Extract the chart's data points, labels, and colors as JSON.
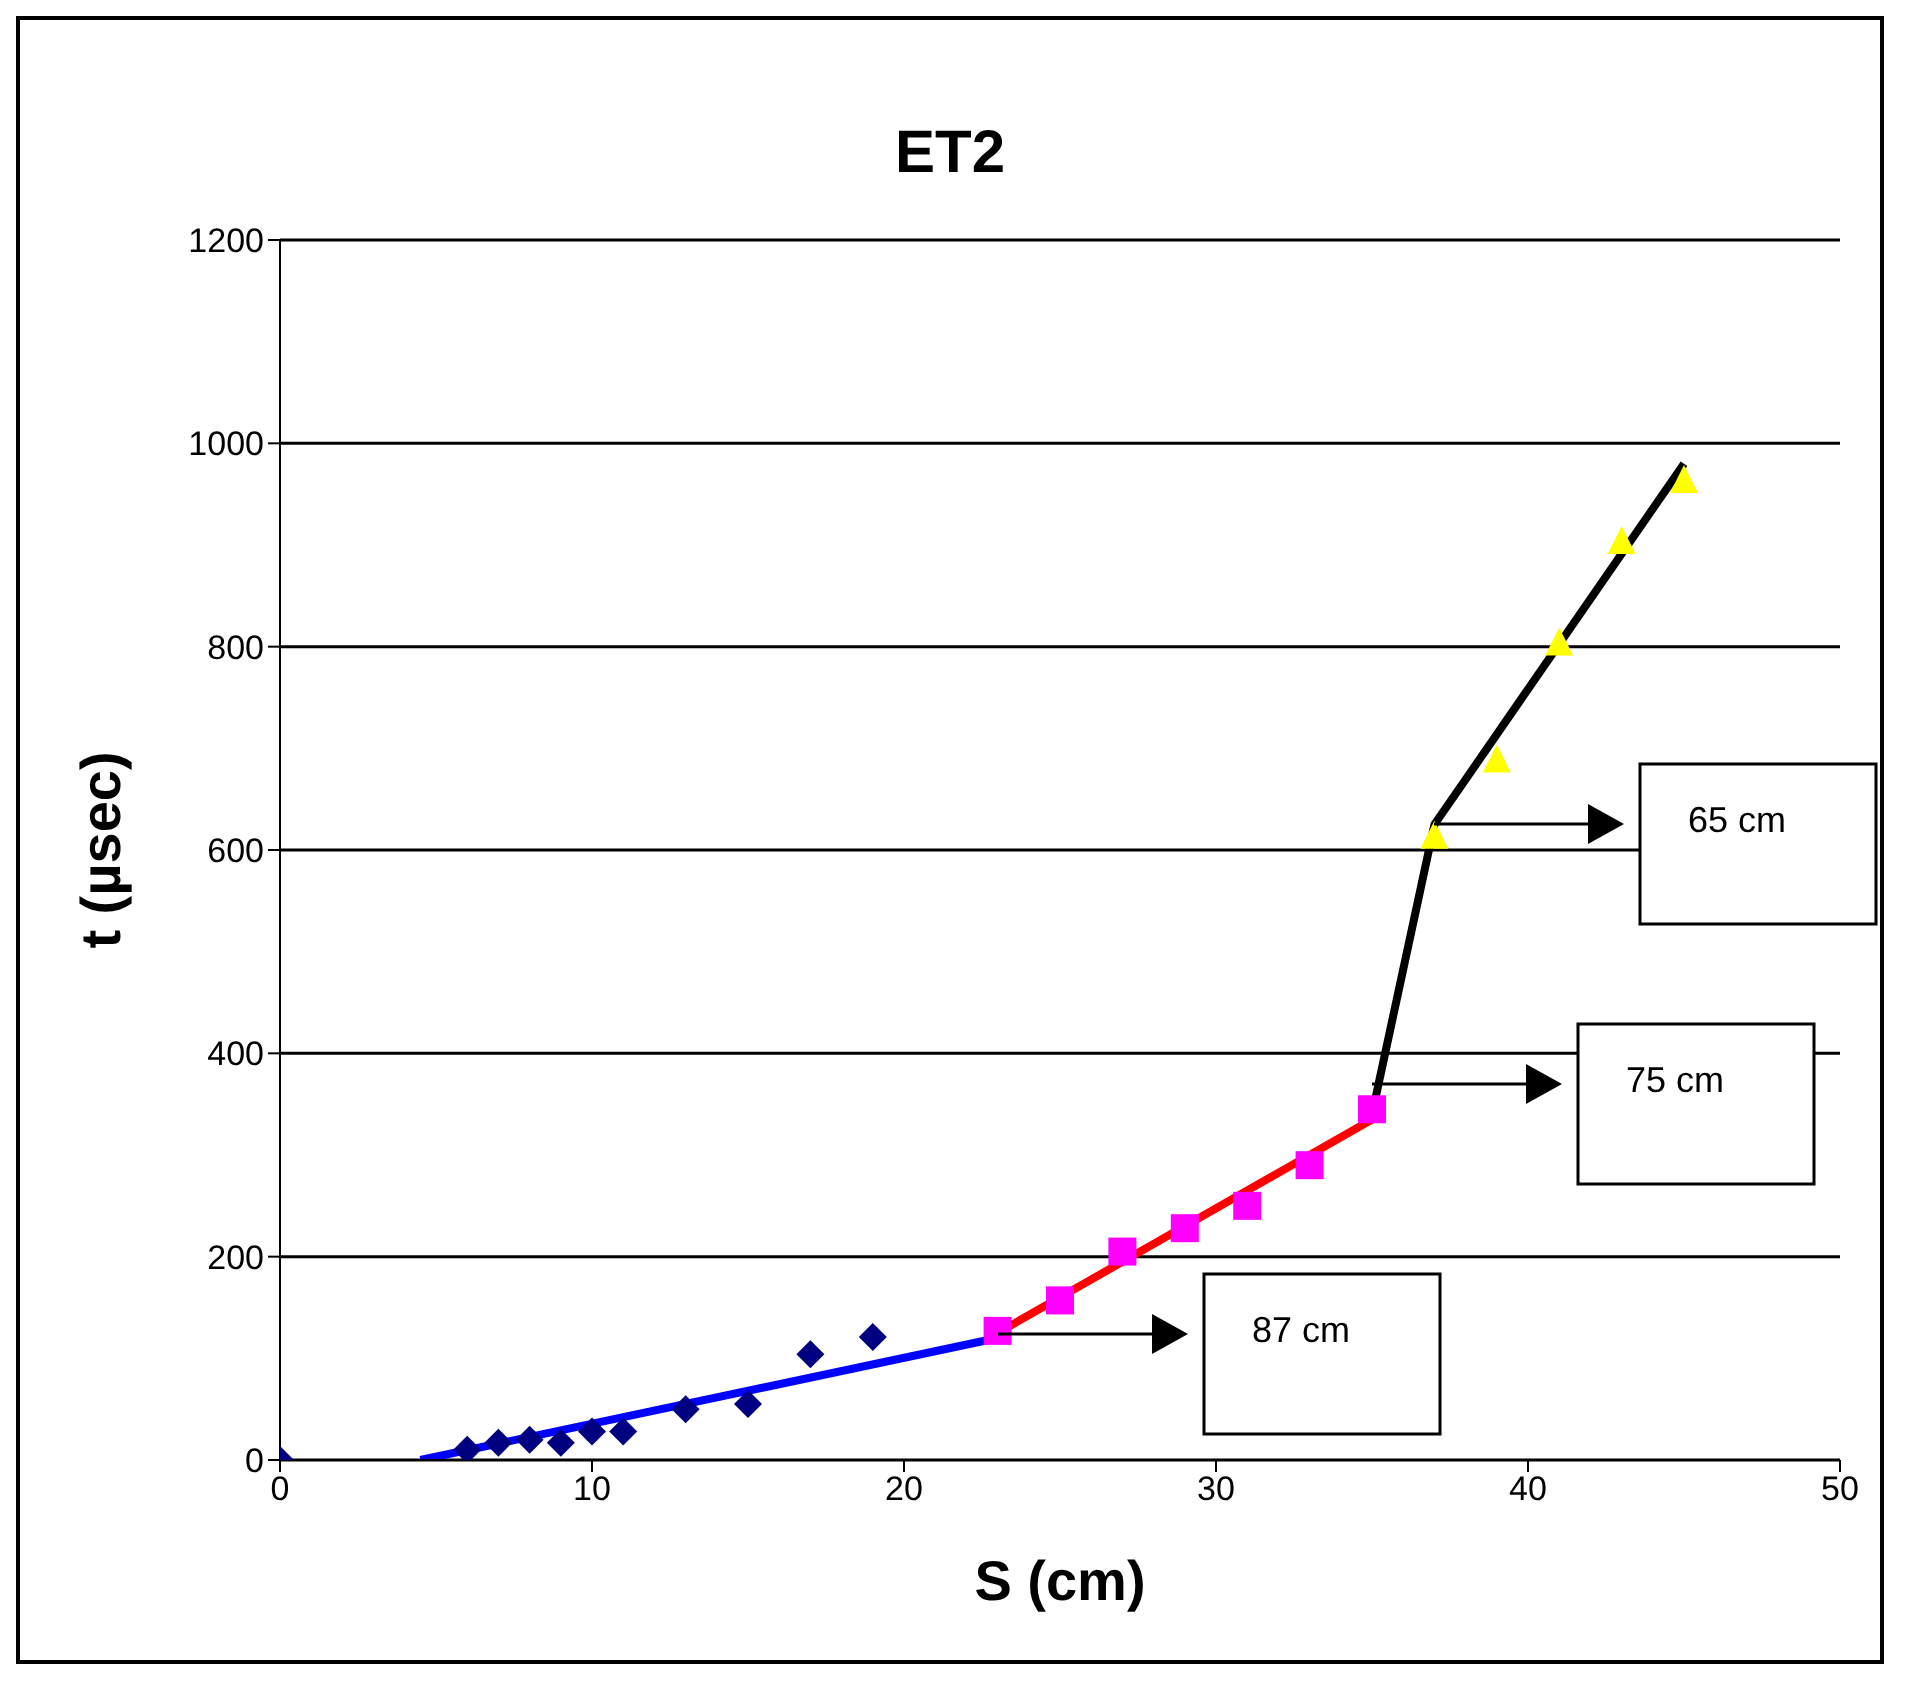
{
  "chart_data": {
    "type": "scatter",
    "title": "ET2",
    "xlabel": "S (cm)",
    "ylabel": "t (µsec)",
    "xlim": [
      0,
      50
    ],
    "xticks": [
      0,
      10,
      20,
      30,
      40,
      50
    ],
    "ylim": [
      0,
      1200
    ],
    "yticks": [
      0,
      200,
      400,
      600,
      800,
      1000,
      1200
    ],
    "grid": "y",
    "series": [
      {
        "marker": "diamond",
        "color": "#000080",
        "x": [
          0,
          6,
          7,
          8,
          9,
          10,
          11,
          13,
          15,
          17,
          19
        ],
        "values": [
          0,
          10,
          17,
          20,
          17,
          28,
          28,
          50,
          55,
          104,
          121
        ]
      },
      {
        "marker": "square",
        "color": "#ff00ff",
        "x": [
          23,
          25,
          27,
          29,
          31,
          33,
          35
        ],
        "values": [
          127,
          157,
          205,
          228,
          250,
          290,
          345
        ]
      },
      {
        "marker": "triangle",
        "color": "#ffff00",
        "x": [
          37,
          39,
          41,
          43,
          45
        ],
        "values": [
          615,
          690,
          805,
          905,
          965
        ]
      },
      {
        "type": "line",
        "marker": "none",
        "color": "#0000ff",
        "x": [
          4.5,
          23
        ],
        "values": [
          0,
          120
        ]
      },
      {
        "type": "line",
        "marker": "none",
        "color": "#ff0000",
        "x": [
          23,
          35
        ],
        "values": [
          125,
          335
        ]
      },
      {
        "type": "line",
        "marker": "none",
        "color": "#000000",
        "x": [
          35,
          37,
          45
        ],
        "values": [
          340,
          625,
          980
        ]
      }
    ],
    "annotations": [
      "87 cm",
      "75 cm",
      "65 cm"
    ]
  }
}
